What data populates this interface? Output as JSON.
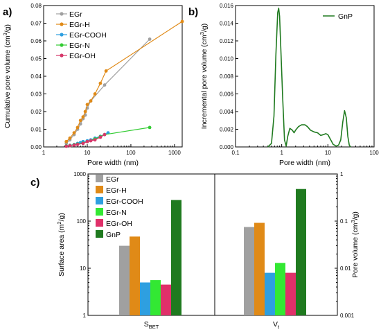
{
  "panel_labels": {
    "a": "a)",
    "b": "b)",
    "c": "c)"
  },
  "chart_data": [
    {
      "panel": "a",
      "type": "line",
      "title": "",
      "xlabel": "Pore width (nm)",
      "ylabel": "Cumulative pore volume (cm³/g)",
      "xscale": "log",
      "xlim": [
        1,
        1500
      ],
      "ylim": [
        0,
        0.08
      ],
      "xtick_labels": [
        "1",
        "10",
        "100",
        "1000"
      ],
      "ytick_labels": [
        "0.00",
        "0.01",
        "0.02",
        "0.03",
        "0.04",
        "0.05",
        "0.06",
        "0.07",
        "0.08"
      ],
      "yticks": [
        0,
        0.01,
        0.02,
        0.03,
        0.04,
        0.05,
        0.06,
        0.07,
        0.08
      ],
      "legend_position": "top-left",
      "series": [
        {
          "name": "EGr",
          "color": "#a0a0a0",
          "x": [
            3.3,
            4,
            5,
            6,
            7,
            8,
            9,
            10,
            12,
            25,
            270
          ],
          "y": [
            0.002,
            0.004,
            0.007,
            0.01,
            0.013,
            0.016,
            0.018,
            0.022,
            0.026,
            0.035,
            0.061
          ]
        },
        {
          "name": "EGr-H",
          "color": "#e08a17",
          "x": [
            3.3,
            4,
            5,
            6,
            7,
            8,
            9,
            10,
            12,
            15,
            20,
            27,
            1500
          ],
          "y": [
            0.003,
            0.005,
            0.008,
            0.011,
            0.015,
            0.017,
            0.02,
            0.024,
            0.026,
            0.03,
            0.036,
            0.043,
            0.071
          ]
        },
        {
          "name": "EGr-COOH",
          "color": "#2e9fe0",
          "x": [
            3.3,
            4,
            5,
            6,
            7,
            8,
            10,
            12,
            15,
            20,
            30
          ],
          "y": [
            0.0005,
            0.0009,
            0.0014,
            0.002,
            0.0025,
            0.003,
            0.0035,
            0.004,
            0.005,
            0.006,
            0.008
          ]
        },
        {
          "name": "EGr-N",
          "color": "#33cc33",
          "x": [
            3.3,
            4,
            5,
            6,
            8,
            10,
            15,
            20,
            25,
            270
          ],
          "y": [
            0.0005,
            0.0008,
            0.0012,
            0.0016,
            0.0022,
            0.003,
            0.0045,
            0.0058,
            0.007,
            0.011
          ]
        },
        {
          "name": "EGr-OH",
          "color": "#d6386a",
          "x": [
            3.3,
            4,
            5,
            6,
            8,
            10,
            12,
            15,
            20,
            25
          ],
          "y": [
            0.0004,
            0.0007,
            0.001,
            0.0014,
            0.002,
            0.003,
            0.0035,
            0.004,
            0.0055,
            0.007
          ]
        }
      ]
    },
    {
      "panel": "b",
      "type": "line",
      "title": "",
      "xlabel": "Pore width (nm)",
      "ylabel": "Incremental pore volume (cm³/g)",
      "xscale": "log",
      "xlim": [
        0.1,
        100
      ],
      "ylim": [
        0,
        0.016
      ],
      "xtick_labels": [
        "0.1",
        "1",
        "10",
        "100"
      ],
      "ytick_labels": [
        "0.000",
        "0.002",
        "0.004",
        "0.006",
        "0.008",
        "0.010",
        "0.012",
        "0.014",
        "0.016"
      ],
      "yticks": [
        0,
        0.002,
        0.004,
        0.006,
        0.008,
        0.01,
        0.012,
        0.014,
        0.016
      ],
      "legend_position": "top-right",
      "series": [
        {
          "name": "GnP",
          "color": "#1f7a1f",
          "x": [
            0.5,
            0.6,
            0.68,
            0.75,
            0.82,
            0.86,
            0.9,
            0.95,
            1.05,
            1.15,
            1.25,
            1.35,
            1.5,
            1.7,
            1.85,
            2.0,
            2.3,
            2.7,
            3.2,
            3.6,
            4.2,
            5.0,
            6.0,
            7.0,
            8.0,
            9.0,
            10.0,
            11.5,
            13.0,
            15.0,
            17.0,
            19.0,
            21.0,
            23.0,
            25.0,
            27.0,
            29.0,
            31.0
          ],
          "y": [
            0,
            0.0004,
            0.0035,
            0.0105,
            0.0152,
            0.0157,
            0.0148,
            0.0115,
            0.0055,
            0.0008,
            0.0001,
            0.0012,
            0.0021,
            0.0019,
            0.0016,
            0.0019,
            0.0023,
            0.0025,
            0.0025,
            0.0023,
            0.0019,
            0.0017,
            0.0016,
            0.0013,
            0.0014,
            0.0015,
            0.0014,
            0.0008,
            0.0003,
            0.0001,
            0.0002,
            0.0008,
            0.0028,
            0.0041,
            0.0033,
            0.0012,
            0.0002,
            0
          ]
        }
      ]
    },
    {
      "panel": "c",
      "type": "bar",
      "title": "",
      "xlabel": "",
      "categories": [
        "S_BET",
        "V_t"
      ],
      "category_labels": [
        {
          "main": "S",
          "sub": "BET"
        },
        {
          "main": "V",
          "sub": "t"
        }
      ],
      "ylabel_left": "Surface area (m²/g)",
      "ylabel_right": "Pore volume (cm³/g)",
      "yscale": "log",
      "ylim_left": [
        1,
        1000
      ],
      "ylim_right": [
        0.001,
        1
      ],
      "left_tick_labels": [
        "1",
        "10",
        "100",
        "1000"
      ],
      "right_tick_labels": [
        "0.001",
        "0.01",
        "0.1",
        "1"
      ],
      "legend_position": "top-left",
      "series": [
        {
          "name": "EGr",
          "color": "#a0a0a0",
          "values": [
            30,
            0.075
          ]
        },
        {
          "name": "EGr-H",
          "color": "#e08a17",
          "values": [
            47,
            0.092
          ]
        },
        {
          "name": "EGr-COOH",
          "color": "#2e9fe0",
          "values": [
            5,
            0.008
          ]
        },
        {
          "name": "EGr-N",
          "color": "#33e833",
          "values": [
            5.6,
            0.013
          ]
        },
        {
          "name": "EGr-OH",
          "color": "#e0306a",
          "values": [
            4.5,
            0.008
          ]
        },
        {
          "name": "GnP",
          "color": "#1f7a1f",
          "values": [
            280,
            0.48
          ]
        }
      ]
    }
  ]
}
